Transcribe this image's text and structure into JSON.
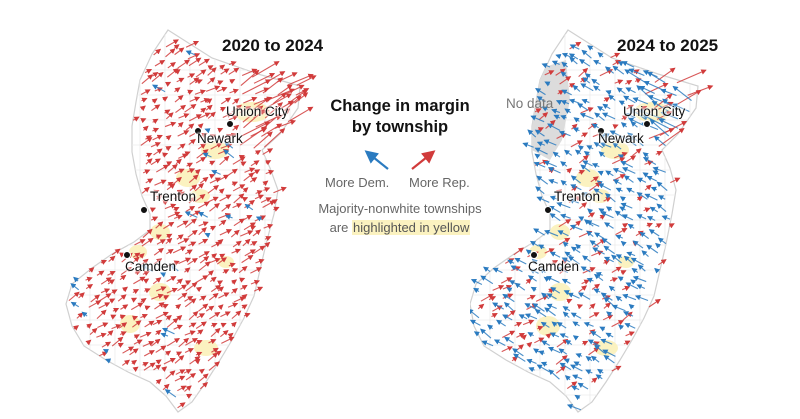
{
  "legend": {
    "title_line1": "Change in margin",
    "title_line2": "by township",
    "more_dem": "More Dem.",
    "more_rep": "More Rep.",
    "note_prefix": "Majority-nonwhite townships",
    "note_mid": "are ",
    "note_highlight": "highlighted in yellow"
  },
  "colors": {
    "dem": "#2b7bc0",
    "rep": "#d13b3b",
    "highlight": "#fbf2c0",
    "no_data": "#dcdcdc",
    "border": "#d8d8d8"
  },
  "maps": [
    {
      "id": "left",
      "title": "2020 to 2024",
      "dominant_shift": "Rep.",
      "cities": [
        {
          "name": "Union City"
        },
        {
          "name": "Newark"
        },
        {
          "name": "Trenton"
        },
        {
          "name": "Camden"
        }
      ]
    },
    {
      "id": "right",
      "title": "2024 to 2025",
      "dominant_shift": "Dem.",
      "no_data_label": "No data",
      "cities": [
        {
          "name": "Union City"
        },
        {
          "name": "Newark"
        },
        {
          "name": "Trenton"
        },
        {
          "name": "Camden"
        }
      ]
    }
  ]
}
